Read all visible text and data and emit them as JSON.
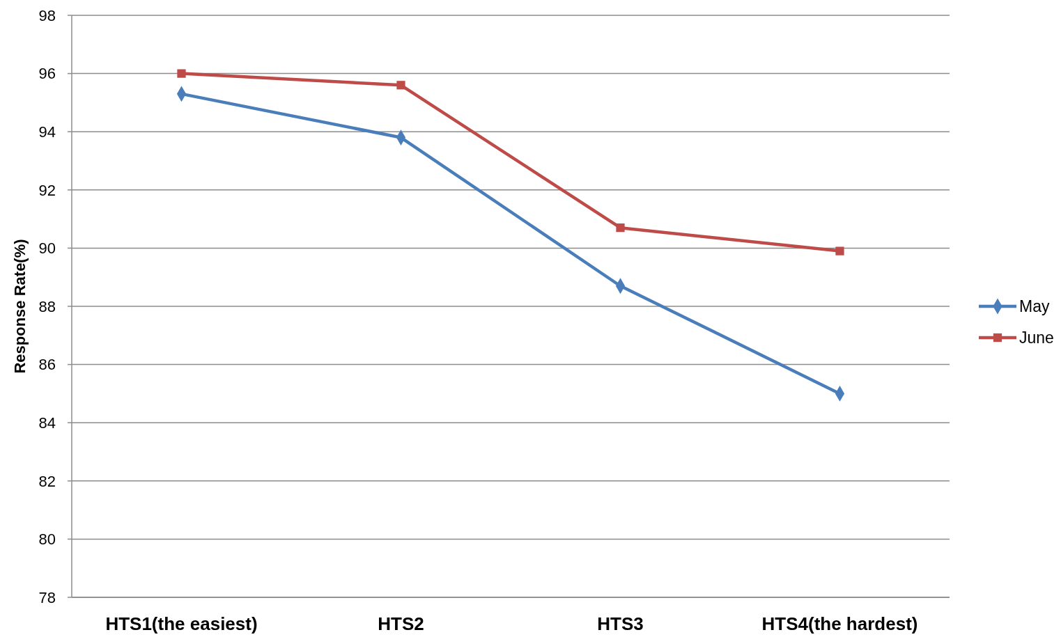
{
  "chart_data": {
    "type": "line",
    "ylabel": "Response Rate(%)",
    "categories": [
      "HTS1(the easiest)",
      "HTS2",
      "HTS3",
      "HTS4(the hardest)"
    ],
    "series": [
      {
        "name": "May",
        "color": "#4a7ebb",
        "values": [
          95.3,
          93.8,
          88.7,
          85.0
        ],
        "marker": "diamond"
      },
      {
        "name": "June",
        "color": "#be4b48",
        "values": [
          96.0,
          95.6,
          90.7,
          89.9
        ],
        "marker": "square"
      }
    ],
    "ylim": [
      78,
      98
    ],
    "yticks": [
      78,
      80,
      82,
      84,
      86,
      88,
      90,
      92,
      94,
      96,
      98
    ],
    "grid": "y",
    "legend": "right",
    "line_style": "solid"
  }
}
